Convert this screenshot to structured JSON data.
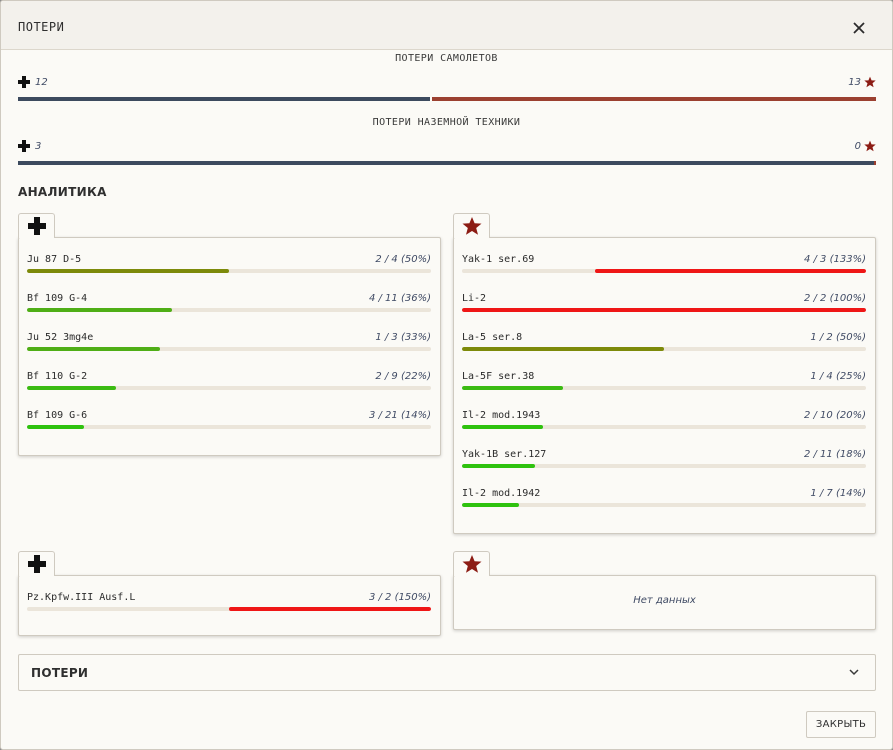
{
  "dialog": {
    "title": "ПОТЕРИ",
    "close_icon": "close-icon"
  },
  "colors": {
    "axis_blue": "#3c4a5e",
    "allies_red": "#9b4030",
    "star_red": "#8c1c14",
    "bar_olive": "#7d8a0a",
    "bar_green_mid": "#4fae16",
    "bar_green": "#2ec20e",
    "bar_red": "#ef1616",
    "track": "#ebe5da"
  },
  "summary": {
    "aircraft": {
      "title": "ПОТЕРИ САМОЛЕТОВ",
      "axis_value": "12",
      "allies_value": "13",
      "axis_share": 0.48
    },
    "ground": {
      "title": "ПОТЕРИ НАЗЕМНОЙ ТЕХНИКИ",
      "axis_value": "3",
      "allies_value": "0",
      "axis_share": 0.998
    }
  },
  "analytics": {
    "title": "АНАЛИТИКА",
    "axis_aircraft": {
      "icon": "iron-cross-icon",
      "rows": [
        {
          "name": "Ju 87 D-5",
          "stat": "2 / 4 (50%)",
          "fill": 0.5,
          "color": "#7d8a0a"
        },
        {
          "name": "Bf 109 G-4",
          "stat": "4 / 11 (36%)",
          "fill": 0.36,
          "color": "#4fae16"
        },
        {
          "name": "Ju 52 3mg4e",
          "stat": "1 / 3 (33%)",
          "fill": 0.33,
          "color": "#4fae16"
        },
        {
          "name": "Bf 110 G-2",
          "stat": "2 / 9 (22%)",
          "fill": 0.22,
          "color": "#3bbb12"
        },
        {
          "name": "Bf 109 G-6",
          "stat": "3 / 21 (14%)",
          "fill": 0.14,
          "color": "#2ec20e"
        }
      ]
    },
    "allies_aircraft": {
      "icon": "red-star-icon",
      "rows": [
        {
          "name": "Yak-1 ser.69",
          "stat": "4 / 3 (133%)",
          "fill": 0.67,
          "color": "#ef1616",
          "anchor": "right"
        },
        {
          "name": "Li-2",
          "stat": "2 / 2 (100%)",
          "fill": 1.0,
          "color": "#ef1616"
        },
        {
          "name": "La-5 ser.8",
          "stat": "1 / 2 (50%)",
          "fill": 0.5,
          "color": "#7d8a0a"
        },
        {
          "name": "La-5F ser.38",
          "stat": "1 / 4 (25%)",
          "fill": 0.25,
          "color": "#3bbb12"
        },
        {
          "name": "Il-2 mod.1943",
          "stat": "2 / 10 (20%)",
          "fill": 0.2,
          "color": "#2ec20e"
        },
        {
          "name": "Yak-1B ser.127",
          "stat": "2 / 11 (18%)",
          "fill": 0.18,
          "color": "#2ec20e"
        },
        {
          "name": "Il-2 mod.1942",
          "stat": "1 / 7 (14%)",
          "fill": 0.14,
          "color": "#2ec20e"
        }
      ]
    },
    "axis_ground": {
      "icon": "iron-cross-icon",
      "rows": [
        {
          "name": "Pz.Kpfw.III Ausf.L",
          "stat": "3 / 2 (150%)",
          "fill": 0.5,
          "color": "#ef1616",
          "anchor": "right"
        }
      ]
    },
    "allies_ground": {
      "icon": "red-star-icon",
      "no_data": "Нет данных"
    }
  },
  "losses_section": {
    "label": "ПОТЕРИ",
    "chevron_icon": "chevron-down-icon"
  },
  "footer": {
    "close_label": "ЗАКРЫТЬ"
  }
}
